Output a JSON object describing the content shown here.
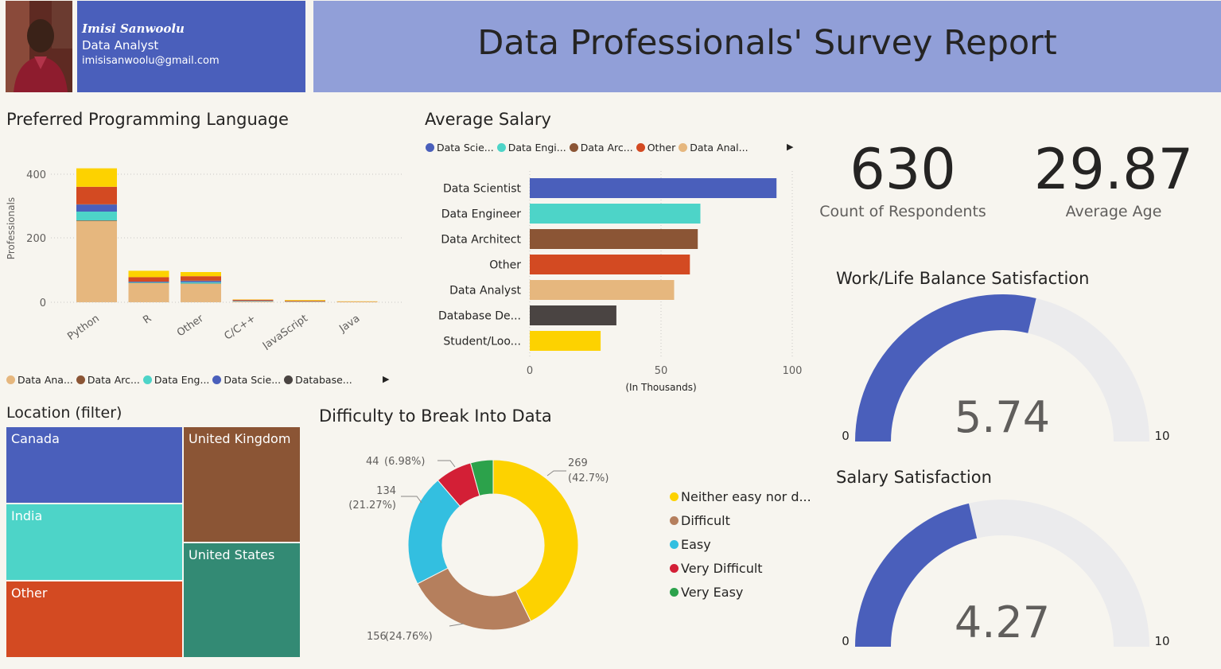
{
  "header": {
    "name": "Imisi Sanwoolu",
    "role": "Data Analyst",
    "email": "imisisanwoolu@gmail.com",
    "report_title": "Data Professionals' Survey Report"
  },
  "colors": {
    "data_analyst": "#e6b77e",
    "data_architect": "#8b5535",
    "data_engineer": "#4dd4c8",
    "data_scientist": "#4a5fbb",
    "database_dev": "#4a4442",
    "other": "#d34a22",
    "student": "#fdd200",
    "header_blue": "#4a5fbb",
    "title_bar": "#919fd8"
  },
  "lang_chart": {
    "title": "Preferred Programming Language",
    "ylabel": "Professionals",
    "yticks": [
      "0",
      "200",
      "400"
    ],
    "legend": [
      {
        "label": "Data Ana...",
        "color": "#e6b77e"
      },
      {
        "label": "Data Arc...",
        "color": "#8b5535"
      },
      {
        "label": "Data Eng...",
        "color": "#4dd4c8"
      },
      {
        "label": "Data Scie...",
        "color": "#4a5fbb"
      },
      {
        "label": "Database...",
        "color": "#4a4442"
      }
    ]
  },
  "salary_chart": {
    "title": "Average Salary",
    "xlabel": "(In Thousands)",
    "xticks": [
      "0",
      "50",
      "100"
    ],
    "legend": [
      {
        "label": "Data Scie...",
        "color": "#4a5fbb"
      },
      {
        "label": "Data Engi...",
        "color": "#4dd4c8"
      },
      {
        "label": "Data Arc...",
        "color": "#8b5535"
      },
      {
        "label": "Other",
        "color": "#d34a22"
      },
      {
        "label": "Data Anal...",
        "color": "#e6b77e"
      }
    ]
  },
  "kpis": {
    "respondents_value": "630",
    "respondents_label": "Count of Respondents",
    "age_value": "29.87",
    "age_label": "Average Age"
  },
  "gauges": {
    "worklife": {
      "title": "Work/Life Balance Satisfaction",
      "value": 5.74,
      "value_label": "5.74",
      "min_label": "0",
      "max_label": "10",
      "max": 10
    },
    "salary": {
      "title": "Salary Satisfaction",
      "value": 4.27,
      "value_label": "4.27",
      "min_label": "0",
      "max_label": "10",
      "max": 10
    }
  },
  "location": {
    "title": "Location (filter)",
    "cells": {
      "canada": {
        "label": "Canada",
        "color": "#4a5fbb"
      },
      "india": {
        "label": "India",
        "color": "#4dd4c8"
      },
      "other": {
        "label": "Other",
        "color": "#d34a22"
      },
      "uk": {
        "label": "United Kingdom",
        "color": "#8b5535"
      },
      "us": {
        "label": "United States",
        "color": "#338a74"
      }
    }
  },
  "difficulty": {
    "title": "Difficulty to Break Into Data"
  },
  "chart_data": [
    {
      "type": "bar",
      "stacked": true,
      "title": "Preferred Programming Language",
      "ylabel": "Professionals",
      "ylim": [
        0,
        450
      ],
      "categories": [
        "Python",
        "R",
        "Other",
        "C/C++",
        "JavaScript",
        "Java"
      ],
      "series": [
        {
          "name": "Data Analyst",
          "color": "#e6b77e",
          "values": [
            255,
            60,
            58,
            3,
            2,
            1
          ]
        },
        {
          "name": "Data Architect",
          "color": "#8b5535",
          "values": [
            2,
            1,
            1,
            0,
            0,
            0
          ]
        },
        {
          "name": "Data Engineer",
          "color": "#4dd4c8",
          "values": [
            28,
            2,
            4,
            1,
            1,
            0
          ]
        },
        {
          "name": "Data Scientist",
          "color": "#4a5fbb",
          "values": [
            22,
            2,
            4,
            1,
            0,
            0
          ]
        },
        {
          "name": "Database Developer",
          "color": "#4a4442",
          "values": [
            1,
            0,
            1,
            0,
            0,
            0
          ]
        },
        {
          "name": "Other",
          "color": "#d34a22",
          "values": [
            55,
            14,
            14,
            3,
            2,
            1
          ]
        },
        {
          "name": "Student/Looking/None",
          "color": "#fdd200",
          "values": [
            58,
            20,
            13,
            1,
            2,
            1
          ]
        }
      ],
      "legend_position": "bottom"
    },
    {
      "type": "bar",
      "orientation": "horizontal",
      "title": "Average Salary",
      "xlabel": "(In Thousands)",
      "xlim": [
        0,
        100
      ],
      "categories": [
        "Data Scientist",
        "Data Engineer",
        "Data Architect",
        "Other",
        "Data Analyst",
        "Database De...",
        "Student/Loo..."
      ],
      "values": [
        94,
        65,
        64,
        61,
        55,
        33,
        27
      ],
      "colors": [
        "#4a5fbb",
        "#4dd4c8",
        "#8b5535",
        "#d34a22",
        "#e6b77e",
        "#4a4442",
        "#fdd200"
      ],
      "legend_position": "top"
    },
    {
      "type": "pie",
      "donut": true,
      "title": "Difficulty to Break Into Data",
      "labels": [
        "Neither easy nor d...",
        "Difficult",
        "Easy",
        "Very Difficult",
        "Very Easy"
      ],
      "values": [
        269,
        156,
        134,
        44,
        27
      ],
      "colors": [
        "#fdd200",
        "#b57f5d",
        "#33bfe0",
        "#d31f36",
        "#2ca24b"
      ],
      "data_labels": [
        {
          "count": "269",
          "pct": "(42.7%)"
        },
        {
          "count": "156",
          "pct": "(24.76%)"
        },
        {
          "count": "134",
          "pct": "(21.27%)"
        },
        {
          "count": "44",
          "pct": "(6.98%)"
        }
      ],
      "legend_position": "right"
    },
    {
      "type": "heatmap",
      "subtype": "treemap",
      "title": "Location (filter)",
      "labels": [
        "Canada",
        "India",
        "Other",
        "United Kingdom",
        "United States"
      ]
    }
  ]
}
